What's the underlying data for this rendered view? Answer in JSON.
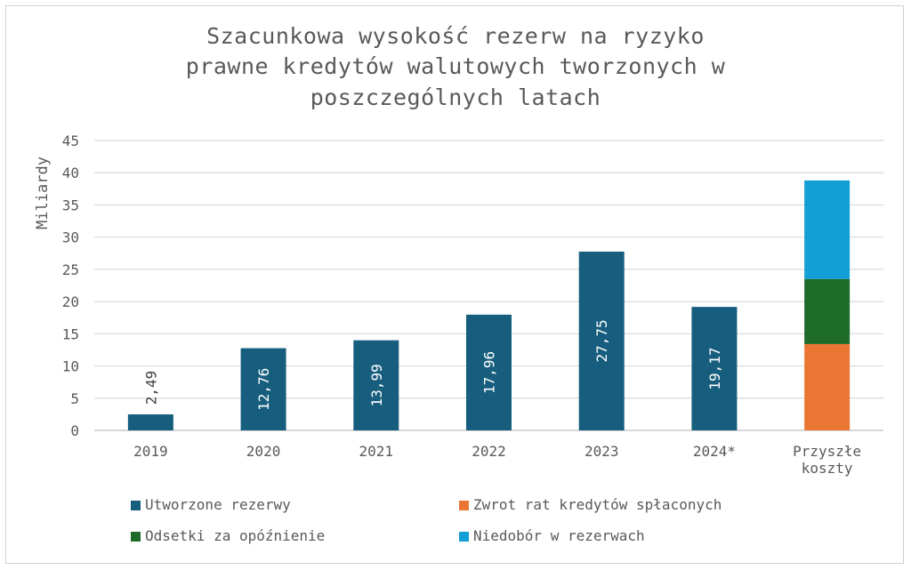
{
  "chart_data": {
    "type": "bar",
    "title_lines": [
      "Szacunkowa wysokość rezerw na ryzyko",
      "prawne kredytów walutowych tworzonych w",
      "poszczególnych latach"
    ],
    "ylabel": "Miliardy",
    "xlabel": "",
    "ylim": [
      0,
      45
    ],
    "yticks": [
      0,
      5,
      10,
      15,
      20,
      25,
      30,
      35,
      40,
      45
    ],
    "grid": true,
    "categories": [
      "2019",
      "2020",
      "2021",
      "2022",
      "2023",
      "2024*",
      "Przyszłe koszty"
    ],
    "series": [
      {
        "name": "Utworzone rezerwy",
        "color": "#175E7E",
        "values": [
          2.49,
          12.76,
          13.99,
          17.96,
          27.75,
          19.17,
          null
        ],
        "labels": [
          "2,49",
          "12,76",
          "13,99",
          "17,96",
          "27,75",
          "19,17",
          ""
        ]
      },
      {
        "name": "Zwrot rat kredytów spłaconych",
        "color": "#EB7634",
        "values": [
          null,
          null,
          null,
          null,
          null,
          null,
          13.4
        ],
        "labels": [
          "",
          "",
          "",
          "",
          "",
          "",
          ""
        ]
      },
      {
        "name": "Odsetki za opóźnienie",
        "color": "#1E6B2A",
        "values": [
          null,
          null,
          null,
          null,
          null,
          null,
          10.1
        ],
        "labels": [
          "",
          "",
          "",
          "",
          "",
          "",
          ""
        ]
      },
      {
        "name": "Niedobór w rezerwach",
        "color": "#119FD6",
        "values": [
          null,
          null,
          null,
          null,
          null,
          null,
          15.3
        ],
        "labels": [
          "",
          "",
          "",
          "",
          "",
          "",
          ""
        ]
      }
    ],
    "legend_position": "bottom"
  }
}
